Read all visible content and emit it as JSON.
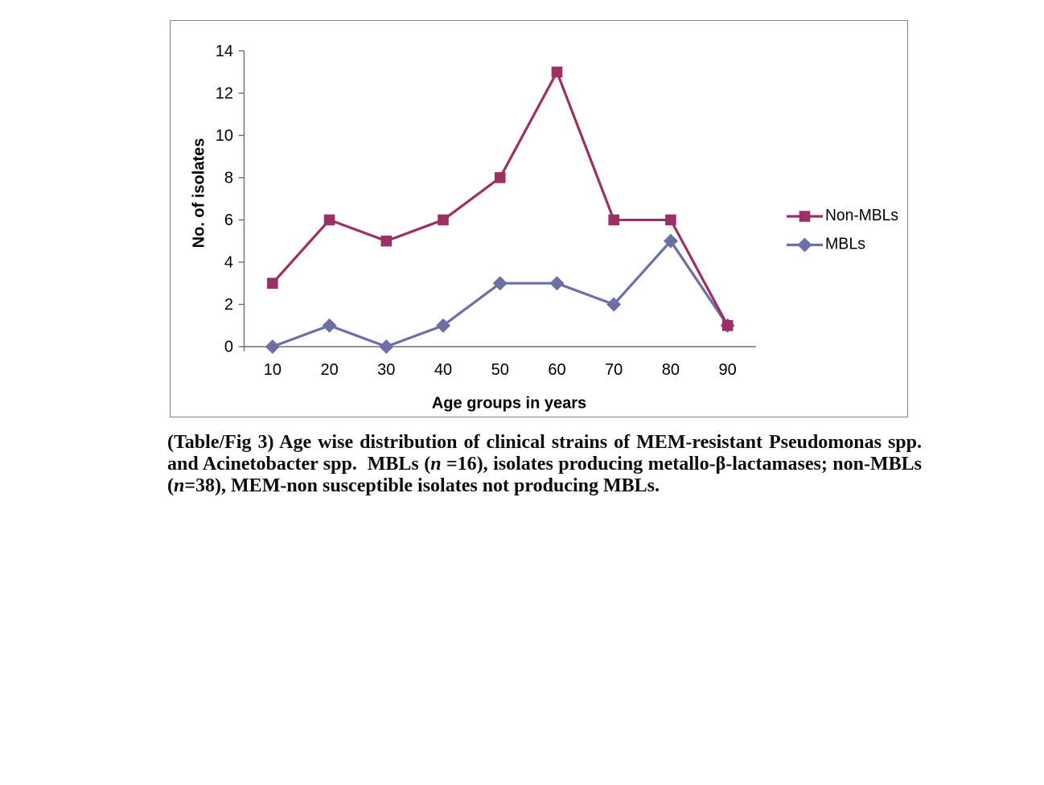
{
  "page": {
    "background": "#ffffff"
  },
  "chart_data": {
    "type": "line",
    "title": "",
    "categories": [
      "10",
      "20",
      "30",
      "40",
      "50",
      "60",
      "70",
      "80",
      "90"
    ],
    "series": [
      {
        "name": "Non-MBLs",
        "values": [
          3,
          6,
          5,
          6,
          8,
          13,
          6,
          6,
          1
        ],
        "color": "#9b3064",
        "marker": "square"
      },
      {
        "name": "MBLs",
        "values": [
          0,
          1,
          0,
          1,
          3,
          3,
          2,
          5,
          1
        ],
        "color": "#6e6ea6",
        "marker": "diamond"
      }
    ],
    "xlabel": "Age groups in years",
    "ylabel": "No. of isolates",
    "ylim": [
      0,
      14
    ],
    "ytick_step": 2,
    "yticks": [
      "0",
      "2",
      "4",
      "6",
      "8",
      "10",
      "12",
      "14"
    ],
    "grid": false,
    "legend_position": "right",
    "axis_color": "#6e6e6e",
    "tick_label_color": "#000000",
    "frame_color": "#848484"
  },
  "caption": {
    "lines": [
      {
        "justify": true,
        "segments": [
          {
            "text": "(Table/Fig 3) Age wise distribution of clinical strains of MEM-resistant Pseudomonas spp.",
            "italic": false
          }
        ]
      },
      {
        "justify": true,
        "segments": [
          {
            "text": "and Acinetobacter spp.  MBLs (",
            "italic": false
          },
          {
            "text": "n",
            "italic": true
          },
          {
            "text": " =16), isolates producing metallo-β-lactamases; non-MBLs",
            "italic": false
          }
        ]
      },
      {
        "justify": false,
        "segments": [
          {
            "text": "(",
            "italic": false
          },
          {
            "text": "n",
            "italic": true
          },
          {
            "text": "=38), MEM-non susceptible isolates not producing MBLs.",
            "italic": false
          }
        ]
      }
    ]
  }
}
